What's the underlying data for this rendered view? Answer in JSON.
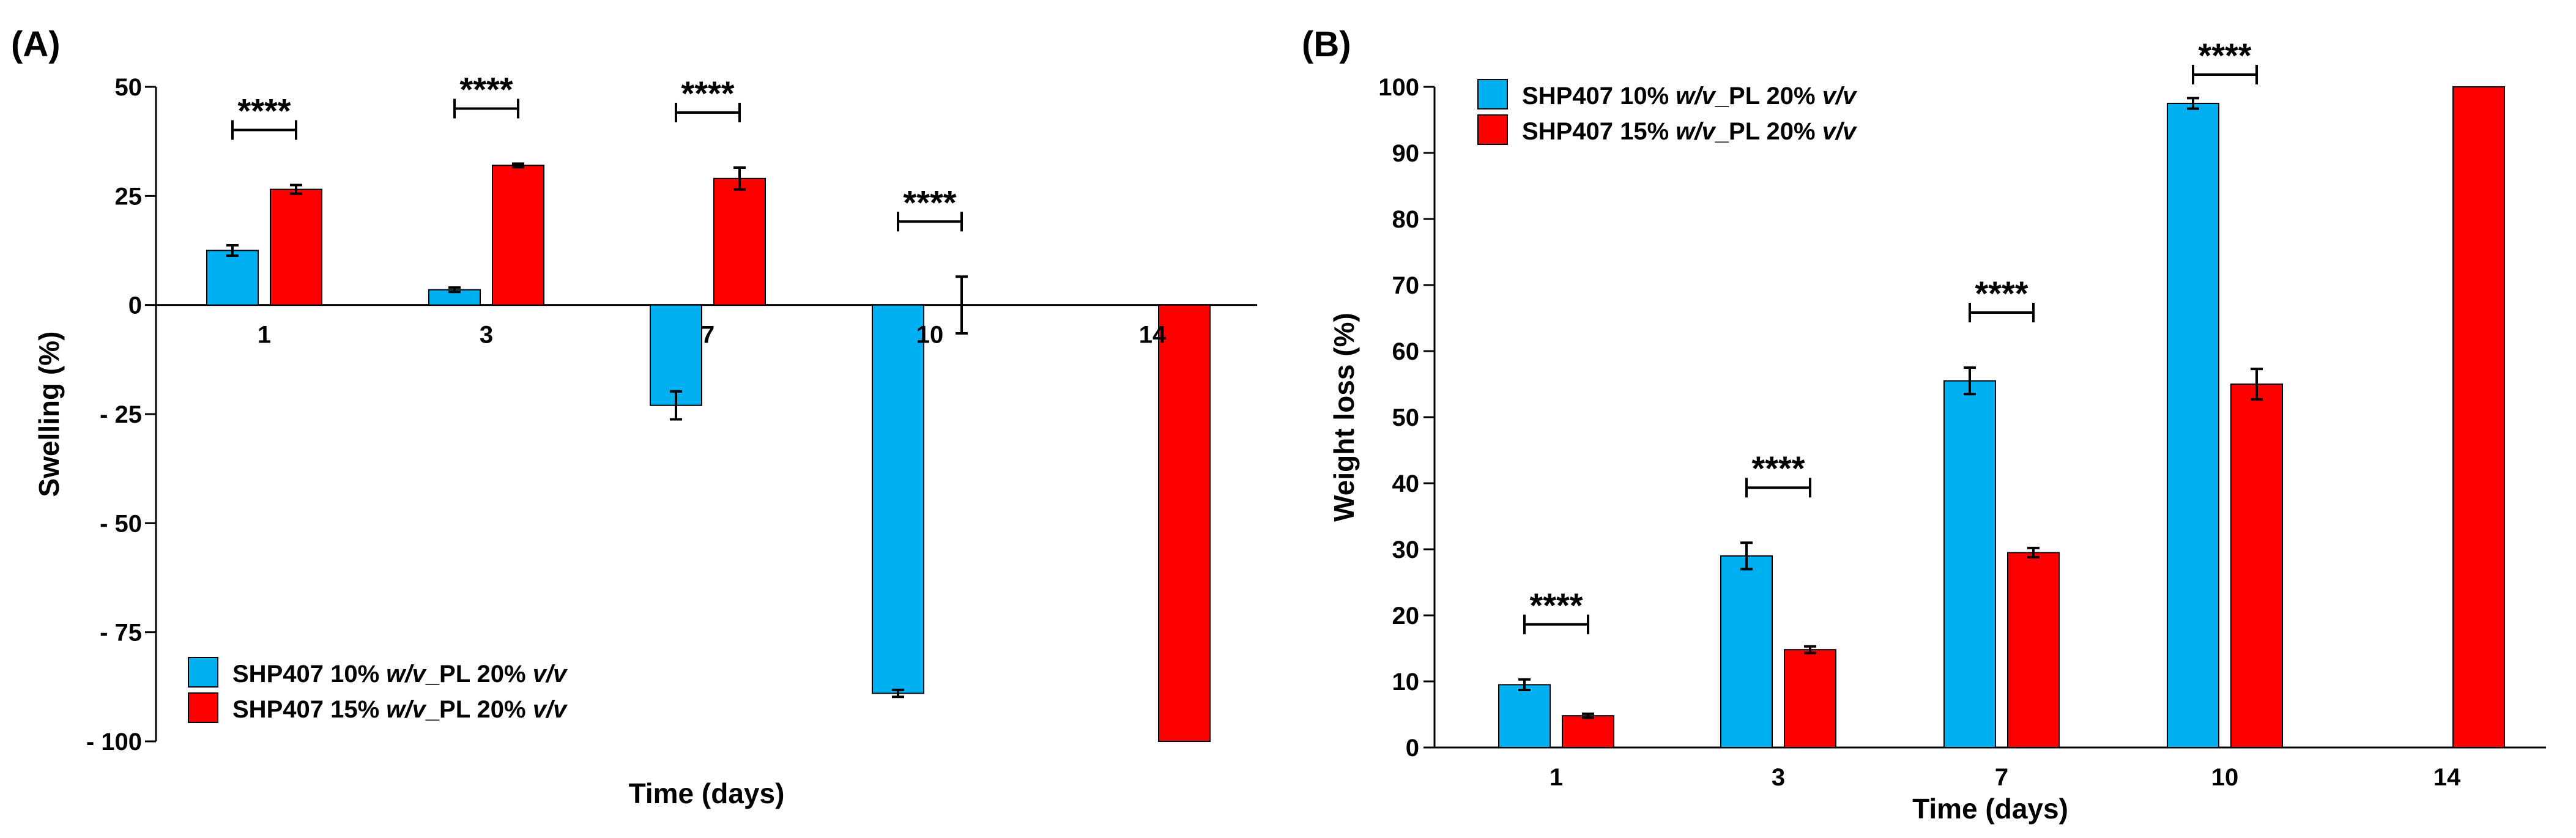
{
  "figure": {
    "colors": {
      "series1": "#00B0F0",
      "series2": "#FF0000",
      "ink": "#000000"
    }
  },
  "chart_data": [
    {
      "panel_label": "(A)",
      "type": "bar",
      "title": "",
      "xlabel": "Time (days)",
      "ylabel": "Swelling (%)",
      "ylim": [
        -100,
        50
      ],
      "yticks": [
        {
          "v": 50,
          "label": "50"
        },
        {
          "v": 25,
          "label": "25"
        },
        {
          "v": 0,
          "label": "0"
        },
        {
          "v": -25,
          "label": "- 25"
        },
        {
          "v": -50,
          "label": "- 50"
        },
        {
          "v": -75,
          "label": "- 75"
        },
        {
          "v": -100,
          "label": "- 100"
        }
      ],
      "categories": [
        "1",
        "3",
        "7",
        "10",
        "14"
      ],
      "series": [
        {
          "name_prefix": "SHP407 10% ",
          "name_w": "w/v",
          "name_mid": "_PL 20% ",
          "name_v": "v/v",
          "color": "#00B0F0",
          "values": [
            12.5,
            3.5,
            -23,
            -89,
            null
          ],
          "errors": [
            1.2,
            0.5,
            3.2,
            0.8,
            null
          ]
        },
        {
          "name_prefix": "SHP407 15% ",
          "name_w": "w/v",
          "name_mid": "_PL 20% ",
          "name_v": "v/v",
          "color": "#FF0000",
          "values": [
            26.5,
            32,
            29,
            0,
            -100
          ],
          "errors": [
            1,
            0.4,
            2.5,
            6.5,
            0
          ]
        }
      ],
      "significance": [
        {
          "category": 0,
          "label": "****"
        },
        {
          "category": 1,
          "label": "****"
        },
        {
          "category": 2,
          "label": "****"
        },
        {
          "category": 3,
          "label": "****"
        }
      ],
      "legend_position": "bottom-left",
      "grid": false
    },
    {
      "panel_label": "(B)",
      "type": "bar",
      "title": "",
      "xlabel": "Time (days)",
      "ylabel": "Weight loss (%)",
      "ylim": [
        0,
        100
      ],
      "yticks": [
        {
          "v": 0,
          "label": "0"
        },
        {
          "v": 10,
          "label": "10"
        },
        {
          "v": 20,
          "label": "20"
        },
        {
          "v": 30,
          "label": "30"
        },
        {
          "v": 40,
          "label": "40"
        },
        {
          "v": 50,
          "label": "50"
        },
        {
          "v": 60,
          "label": "60"
        },
        {
          "v": 70,
          "label": "70"
        },
        {
          "v": 80,
          "label": "80"
        },
        {
          "v": 90,
          "label": "90"
        },
        {
          "v": 100,
          "label": "100"
        }
      ],
      "categories": [
        "1",
        "3",
        "7",
        "10",
        "14"
      ],
      "series": [
        {
          "name_prefix": "SHP407 10% ",
          "name_w": "w/v",
          "name_mid": "_PL 20% ",
          "name_v": "v/v",
          "color": "#00B0F0",
          "values": [
            9.5,
            29,
            55.5,
            97.5,
            null
          ],
          "errors": [
            0.8,
            2,
            2,
            0.8,
            null
          ]
        },
        {
          "name_prefix": "SHP407 15% ",
          "name_w": "w/v",
          "name_mid": "_PL 20% ",
          "name_v": "v/v",
          "color": "#FF0000",
          "values": [
            4.8,
            14.8,
            29.5,
            55,
            100
          ],
          "errors": [
            0.3,
            0.5,
            0.7,
            2.3,
            0
          ]
        }
      ],
      "significance": [
        {
          "category": 0,
          "label": "****"
        },
        {
          "category": 1,
          "label": "****"
        },
        {
          "category": 2,
          "label": "****"
        },
        {
          "category": 3,
          "label": "****"
        }
      ],
      "legend_position": "top-left",
      "grid": false
    }
  ]
}
